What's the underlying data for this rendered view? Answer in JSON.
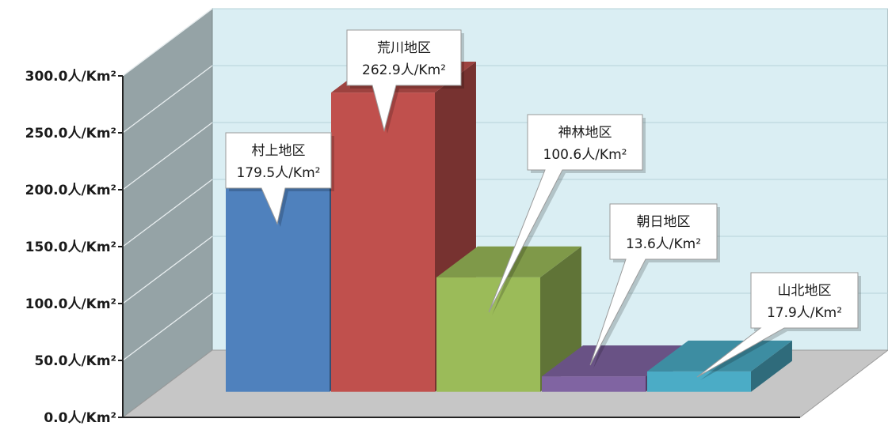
{
  "chart_data": {
    "type": "bar",
    "categories": [
      "村上地区",
      "荒川地区",
      "神林地区",
      "朝日地区",
      "山北地区"
    ],
    "values": [
      179.5,
      262.9,
      100.6,
      13.6,
      17.9
    ],
    "unit": "人/Km²",
    "value_labels": [
      "179.5人/Km²",
      "262.9人/Km²",
      "100.6人/Km²",
      "13.6人/Km²",
      "17.9人/Km²"
    ],
    "y_ticks": [
      "0.0人/Km²",
      "50.0人/Km²",
      "100.0人/Km²",
      "150.0人/Km²",
      "200.0人/Km²",
      "250.0人/Km²",
      "300.0人/Km²"
    ],
    "ylim": [
      0,
      300
    ],
    "grid": true,
    "three_d": true,
    "colors": {
      "bars": [
        "#4f81bd",
        "#c0504d",
        "#9bbb59",
        "#8064a2",
        "#4bacc6"
      ],
      "back_wall": "#daeef3",
      "side_wall": "#95a3a6",
      "floor": "#c6c6c6"
    }
  }
}
